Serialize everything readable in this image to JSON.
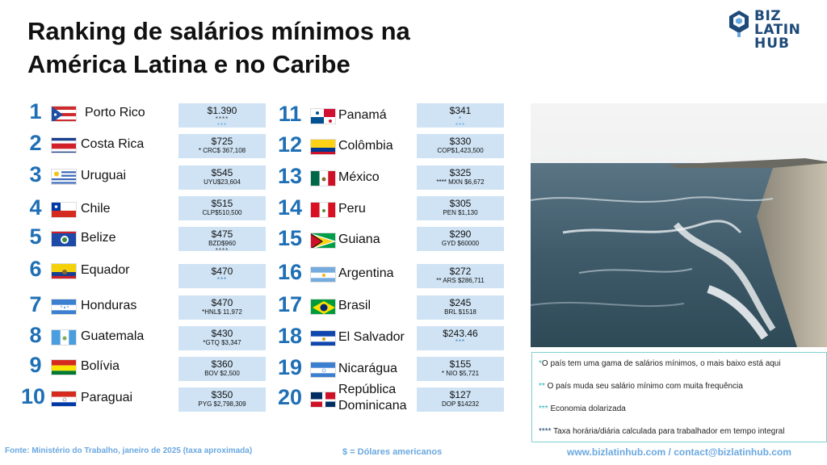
{
  "title": {
    "line1": "Ranking de salários mínimos na",
    "line2": "América Latina e no Caribe"
  },
  "logo": {
    "line1": "BIZ LATIN",
    "line2": "HUB"
  },
  "rankings": [
    {
      "rank": "1",
      "country": "Porto Rico",
      "usd": "$1.390",
      "local": "",
      "stars": "****",
      "stars2": "***",
      "flag": "puerto-rico-flag-icon"
    },
    {
      "rank": "2",
      "country": "Costa Rica",
      "usd": "$725",
      "local": "* CRC$ 367,108",
      "stars": "",
      "stars2": "",
      "flag": "costa-rica-flag-icon"
    },
    {
      "rank": "3",
      "country": "Uruguai",
      "usd": "$545",
      "local": "UYU$23,604",
      "stars": "",
      "stars2": "",
      "flag": "uruguay-flag-icon"
    },
    {
      "rank": "4",
      "country": "Chile",
      "usd": "$515",
      "local": "CLP$510,500",
      "stars": "",
      "stars2": "",
      "flag": "chile-flag-icon"
    },
    {
      "rank": "5",
      "country": "Belize",
      "usd": "$475",
      "local": "BZD$960",
      "stars": "****",
      "stars2": "",
      "flag": "belize-flag-icon"
    },
    {
      "rank": "6",
      "country": "Equador",
      "usd": "$470",
      "local": "",
      "stars": "***",
      "stars2": "",
      "flag": "ecuador-flag-icon"
    },
    {
      "rank": "7",
      "country": "Honduras",
      "usd": "$470",
      "local": "*HNL$ 11,972",
      "stars": "",
      "stars2": "",
      "flag": "honduras-flag-icon"
    },
    {
      "rank": "8",
      "country": "Guatemala",
      "usd": "$430",
      "local": "*GTQ $3,347",
      "stars": "",
      "stars2": "",
      "flag": "guatemala-flag-icon"
    },
    {
      "rank": "9",
      "country": "Bolívia",
      "usd": "$360",
      "local": "BOV $2,500",
      "stars": "",
      "stars2": "",
      "flag": "bolivia-flag-icon"
    },
    {
      "rank": "10",
      "country": "Paraguai",
      "usd": "$350",
      "local": "PYG $2,798,309",
      "stars": "",
      "stars2": "",
      "flag": "paraguay-flag-icon"
    },
    {
      "rank": "11",
      "country": "Panamá",
      "usd": "$341",
      "local": "",
      "stars": "*",
      "stars2": "***",
      "flag": "panama-flag-icon"
    },
    {
      "rank": "12",
      "country": "Colômbia",
      "usd": "$330",
      "local": "COP$1,423,500",
      "stars": "",
      "stars2": "",
      "flag": "colombia-flag-icon"
    },
    {
      "rank": "13",
      "country": "México",
      "usd": "$325",
      "local": "****  MXN $6,672",
      "stars": "",
      "stars2": "",
      "flag": "mexico-flag-icon"
    },
    {
      "rank": "14",
      "country": "Peru",
      "usd": "$305",
      "local": "PEN $1,130",
      "stars": "",
      "stars2": "",
      "flag": "peru-flag-icon"
    },
    {
      "rank": "15",
      "country": "Guiana",
      "usd": "$290",
      "local": "GYD $60000",
      "stars": "",
      "stars2": "",
      "flag": "guyana-flag-icon"
    },
    {
      "rank": "16",
      "country": "Argentina",
      "usd": "$272",
      "local": "** ARS $286,711",
      "stars": "",
      "stars2": "",
      "flag": "argentina-flag-icon"
    },
    {
      "rank": "17",
      "country": "Brasil",
      "usd": "$245",
      "local": "BRL $1518",
      "stars": "",
      "stars2": "",
      "flag": "brazil-flag-icon"
    },
    {
      "rank": "18",
      "country": "El Salvador",
      "usd": "$243.46",
      "local": "",
      "stars": "***",
      "stars2": "",
      "flag": "el-salvador-flag-icon"
    },
    {
      "rank": "19",
      "country": "Nicarágua",
      "usd": "$155",
      "local": "*  NIO  $5,721",
      "stars": "",
      "stars2": "",
      "flag": "nicaragua-flag-icon"
    },
    {
      "rank": "20",
      "country": "República Dominicana",
      "country_l1": "República",
      "country_l2": "Dominicana",
      "usd": "$127",
      "local": "DOP $14232",
      "stars": "",
      "stars2": "",
      "flag": "dominican-republic-flag-icon"
    }
  ],
  "legend": [
    {
      "marker": "*",
      "text": "O país tem uma gama de salários mínimos, o mais baixo está aqui"
    },
    {
      "marker": "**",
      "text": " O país muda seu salário mínimo com muita frequência"
    },
    {
      "marker": "***",
      "text": " Economia dolarizada"
    },
    {
      "marker": "****",
      "text": " Taxa horária/diária calculada para trabalhador em tempo integral"
    }
  ],
  "footer": {
    "source": "Fonte: Ministério do Trabalho, janeiro de 2025 (taxa aproximada)",
    "currency": "$ = Dólares americanos",
    "contact": "www.bizlatinhub.com / contact@bizlatinhub.com"
  },
  "colors": {
    "accent": "#1f6fb5",
    "box": "#cfe3f4",
    "footer": "#6aa8e0",
    "legend_border": "#7ecfcf"
  }
}
